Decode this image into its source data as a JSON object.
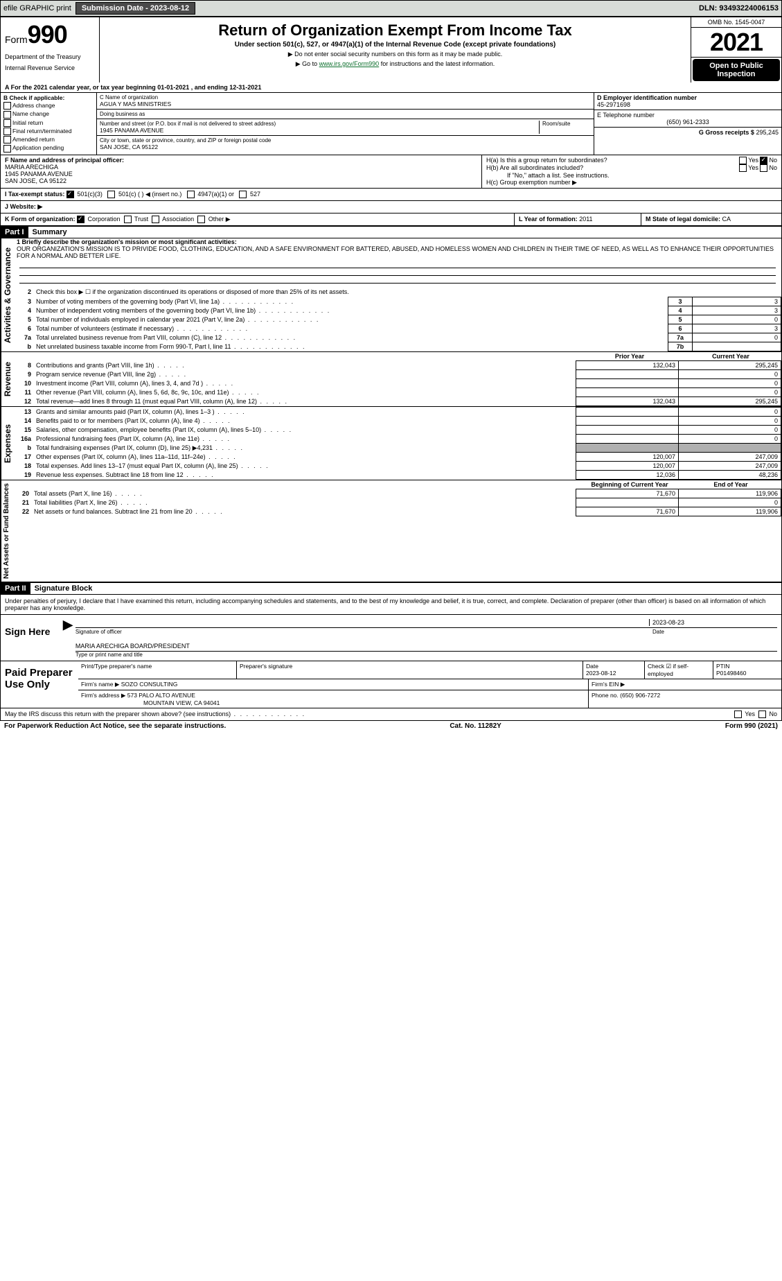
{
  "top": {
    "efile": "efile GRAPHIC print",
    "submission_btn": "Submission Date - 2023-08-12",
    "dln_label": "DLN: ",
    "dln": "93493224006153"
  },
  "header": {
    "form_word": "Form",
    "form_num": "990",
    "dept1": "Department of the Treasury",
    "dept2": "Internal Revenue Service",
    "title": "Return of Organization Exempt From Income Tax",
    "subtitle": "Under section 501(c), 527, or 4947(a)(1) of the Internal Revenue Code (except private foundations)",
    "note1": "▶ Do not enter social security numbers on this form as it may be made public.",
    "note2_pre": "▶ Go to ",
    "note2_link": "www.irs.gov/Form990",
    "note2_post": " for instructions and the latest information.",
    "omb": "OMB No. 1545-0047",
    "year": "2021",
    "open": "Open to Public Inspection"
  },
  "A": {
    "text": "A For the 2021 calendar year, or tax year beginning 01-01-2021    , and ending 12-31-2021"
  },
  "B": {
    "title": "B Check if applicable:",
    "opts": [
      "Address change",
      "Name change",
      "Initial return",
      "Final return/terminated",
      "Amended return",
      "Application pending"
    ]
  },
  "C": {
    "name_label": "C Name of organization",
    "name": "AGUA Y MAS MINISTRIES",
    "dba_label": "Doing business as",
    "dba": "",
    "street_label": "Number and street (or P.O. box if mail is not delivered to street address)",
    "room_label": "Room/suite",
    "street": "1945 PANAMA AVENUE",
    "city_label": "City or town, state or province, country, and ZIP or foreign postal code",
    "city": "SAN JOSE, CA  95122"
  },
  "D": {
    "label": "D Employer identification number",
    "val": "45-2971698"
  },
  "E": {
    "label": "E Telephone number",
    "val": "(650) 961-2333"
  },
  "G": {
    "label": "G Gross receipts $",
    "val": "295,245"
  },
  "F": {
    "label": "F  Name and address of principal officer:",
    "name": "MARIA ARECHIGA",
    "addr1": "1945 PANAMA AVENUE",
    "addr2": "SAN JOSE, CA  95122"
  },
  "H": {
    "a": "H(a)  Is this a group return for subordinates?",
    "b": "H(b)  Are all subordinates included?",
    "b_note": "If \"No,\" attach a list. See instructions.",
    "c": "H(c)  Group exemption number ▶",
    "yes": "Yes",
    "no": "No"
  },
  "I": {
    "label": "I   Tax-exempt status:",
    "o1": "501(c)(3)",
    "o2": "501(c) (  ) ◀ (insert no.)",
    "o3": "4947(a)(1) or",
    "o4": "527"
  },
  "J": {
    "label": "J   Website: ▶"
  },
  "K": {
    "label": "K Form of organization:",
    "o1": "Corporation",
    "o2": "Trust",
    "o3": "Association",
    "o4": "Other ▶"
  },
  "L": {
    "label": "L Year of formation: ",
    "val": "2011"
  },
  "M": {
    "label": "M State of legal domicile: ",
    "val": "CA"
  },
  "part1": {
    "tag": "Part I",
    "title": "Summary"
  },
  "summary": {
    "l1_label": "1  Briefly describe the organization's mission or most significant activities:",
    "l1_text": "OUR ORGANIZATION'S MISSION IS TO PRIVIDE FOOD, CLOTHING, EDUCATION, AND A SAFE ENVIRONMENT FOR BATTERED, ABUSED, AND HOMELESS WOMEN AND CHILDREN IN THEIR TIME OF NEED, AS WELL AS TO ENHANCE THEIR OPPORTUNITIES FOR A NORMAL AND BETTER LIFE.",
    "l2": "Check this box ▶ ☐  if the organization discontinued its operations or disposed of more than 25% of its net assets.",
    "rows_gov": [
      {
        "n": "3",
        "t": "Number of voting members of the governing body (Part VI, line 1a)",
        "b": "3",
        "v": "3"
      },
      {
        "n": "4",
        "t": "Number of independent voting members of the governing body (Part VI, line 1b)",
        "b": "4",
        "v": "3"
      },
      {
        "n": "5",
        "t": "Total number of individuals employed in calendar year 2021 (Part V, line 2a)",
        "b": "5",
        "v": "0"
      },
      {
        "n": "6",
        "t": "Total number of volunteers (estimate if necessary)",
        "b": "6",
        "v": "3"
      },
      {
        "n": "7a",
        "t": "Total unrelated business revenue from Part VIII, column (C), line 12",
        "b": "7a",
        "v": "0"
      },
      {
        "n": "b",
        "t": "Net unrelated business taxable income from Form 990-T, Part I, line 11",
        "b": "7b",
        "v": ""
      }
    ],
    "col_prior": "Prior Year",
    "col_current": "Current Year",
    "rows_rev": [
      {
        "n": "8",
        "t": "Contributions and grants (Part VIII, line 1h)",
        "p": "132,043",
        "c": "295,245"
      },
      {
        "n": "9",
        "t": "Program service revenue (Part VIII, line 2g)",
        "p": "",
        "c": "0"
      },
      {
        "n": "10",
        "t": "Investment income (Part VIII, column (A), lines 3, 4, and 7d )",
        "p": "",
        "c": "0"
      },
      {
        "n": "11",
        "t": "Other revenue (Part VIII, column (A), lines 5, 6d, 8c, 9c, 10c, and 11e)",
        "p": "",
        "c": "0"
      },
      {
        "n": "12",
        "t": "Total revenue—add lines 8 through 11 (must equal Part VIII, column (A), line 12)",
        "p": "132,043",
        "c": "295,245"
      }
    ],
    "rows_exp": [
      {
        "n": "13",
        "t": "Grants and similar amounts paid (Part IX, column (A), lines 1–3 )",
        "p": "",
        "c": "0"
      },
      {
        "n": "14",
        "t": "Benefits paid to or for members (Part IX, column (A), line 4)",
        "p": "",
        "c": "0"
      },
      {
        "n": "15",
        "t": "Salaries, other compensation, employee benefits (Part IX, column (A), lines 5–10)",
        "p": "",
        "c": "0"
      },
      {
        "n": "16a",
        "t": "Professional fundraising fees (Part IX, column (A), line 11e)",
        "p": "",
        "c": "0"
      },
      {
        "n": "b",
        "t": "Total fundraising expenses (Part IX, column (D), line 25) ▶4,231",
        "p": "GREY",
        "c": "GREY"
      },
      {
        "n": "17",
        "t": "Other expenses (Part IX, column (A), lines 11a–11d, 11f–24e)",
        "p": "120,007",
        "c": "247,009"
      },
      {
        "n": "18",
        "t": "Total expenses. Add lines 13–17 (must equal Part IX, column (A), line 25)",
        "p": "120,007",
        "c": "247,009"
      },
      {
        "n": "19",
        "t": "Revenue less expenses. Subtract line 18 from line 12",
        "p": "12,036",
        "c": "48,236"
      }
    ],
    "col_begin": "Beginning of Current Year",
    "col_end": "End of Year",
    "rows_net": [
      {
        "n": "20",
        "t": "Total assets (Part X, line 16)",
        "p": "71,670",
        "c": "119,906"
      },
      {
        "n": "21",
        "t": "Total liabilities (Part X, line 26)",
        "p": "",
        "c": "0"
      },
      {
        "n": "22",
        "t": "Net assets or fund balances. Subtract line 21 from line 20",
        "p": "71,670",
        "c": "119,906"
      }
    ]
  },
  "part2": {
    "tag": "Part II",
    "title": "Signature Block"
  },
  "sig": {
    "penalty": "Under penalties of perjury, I declare that I have examined this return, including accompanying schedules and statements, and to the best of my knowledge and belief, it is true, correct, and complete. Declaration of preparer (other than officer) is based on all information of which preparer has any knowledge.",
    "sign_here": "Sign Here",
    "sig_officer": "Signature of officer",
    "date": "Date",
    "date_val": "2023-08-23",
    "name_title": "MARIA ARECHIGA  BOARD/PRESIDENT",
    "type_name": "Type or print name and title"
  },
  "paid": {
    "title": "Paid Preparer Use Only",
    "h1": "Print/Type preparer's name",
    "h2": "Preparer's signature",
    "h3": "Date",
    "h3v": "2023-08-12",
    "h4": "Check ☑ if self-employed",
    "h5": "PTIN",
    "h5v": "P01498460",
    "firm_name_l": "Firm's name    ▶",
    "firm_name": "SOZO CONSULTING",
    "firm_ein_l": "Firm's EIN ▶",
    "firm_addr_l": "Firm's address ▶",
    "firm_addr1": "573 PALO ALTO AVENUE",
    "firm_addr2": "MOUNTAIN VIEW, CA  94041",
    "phone_l": "Phone no.",
    "phone": "(650) 906-7272"
  },
  "bottom": {
    "q": "May the IRS discuss this return with the preparer shown above? (see instructions)",
    "yes": "Yes",
    "no": "No",
    "pra": "For Paperwork Reduction Act Notice, see the separate instructions.",
    "cat": "Cat. No. 11282Y",
    "form": "Form 990 (2021)"
  },
  "vlabels": {
    "gov": "Activities & Governance",
    "rev": "Revenue",
    "exp": "Expenses",
    "net": "Net Assets or Fund Balances"
  }
}
